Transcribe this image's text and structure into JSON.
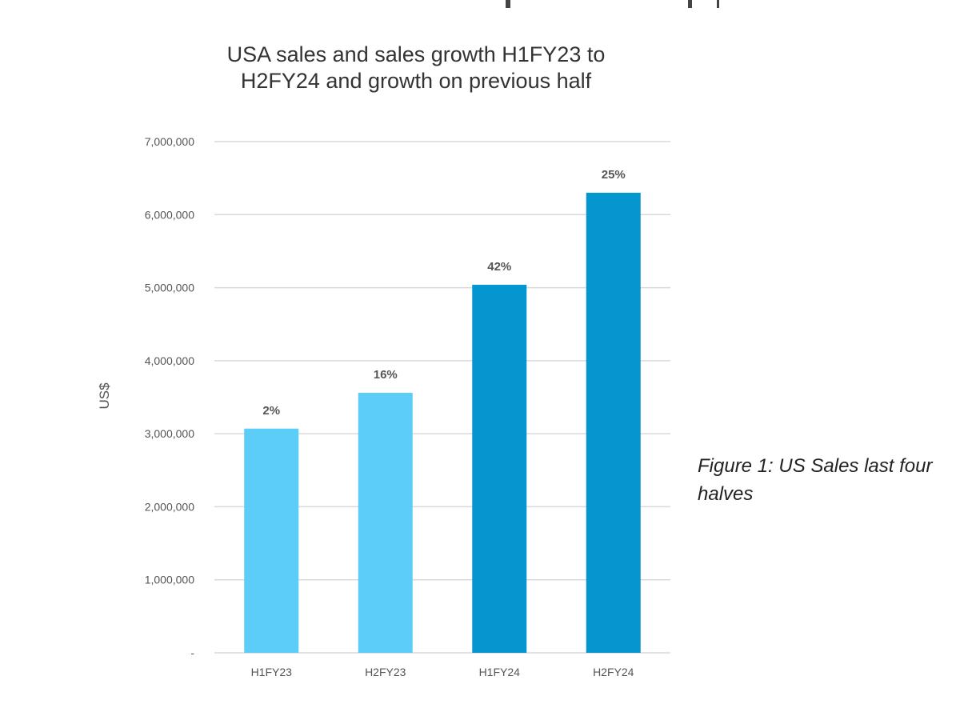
{
  "chart_data": {
    "type": "bar",
    "title_lines": [
      "USA sales and sales growth H1FY23 to",
      "H2FY24 and growth on previous half"
    ],
    "ylabel": "US$",
    "xlabel": "",
    "ylim": [
      0,
      7000000
    ],
    "y_ticks": [
      {
        "value": 0,
        "label": "-"
      },
      {
        "value": 1000000,
        "label": "1,000,000"
      },
      {
        "value": 2000000,
        "label": "2,000,000"
      },
      {
        "value": 3000000,
        "label": "3,000,000"
      },
      {
        "value": 4000000,
        "label": "4,000,000"
      },
      {
        "value": 5000000,
        "label": "5,000,000"
      },
      {
        "value": 6000000,
        "label": "6,000,000"
      },
      {
        "value": 7000000,
        "label": "7,000,000"
      }
    ],
    "categories": [
      "H1FY23",
      "H2FY23",
      "H1FY24",
      "H2FY24"
    ],
    "values": [
      3070000,
      3560000,
      5040000,
      6300000
    ],
    "data_labels": [
      "2%",
      "16%",
      "42%",
      "25%"
    ],
    "colors": [
      "#5bcdf6",
      "#5bcdf6",
      "#0595cf",
      "#0595cf"
    ],
    "grid": true,
    "gridline_color": "#d9d9d9"
  },
  "caption": "Figure 1: US Sales last four halves"
}
